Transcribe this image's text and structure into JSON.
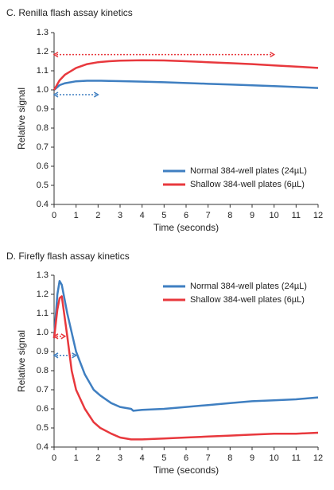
{
  "chart_data": [
    {
      "type": "line",
      "title": "C. Renilla flash assay kinetics",
      "x_label": "Time (seconds)",
      "y_label": "Relative signal",
      "x": [
        0,
        0.25,
        0.5,
        1,
        1.5,
        2,
        2.5,
        3,
        4,
        5,
        6,
        7,
        8,
        9,
        10,
        11,
        12
      ],
      "series": [
        {
          "name": "Normal 384-well plates (24µL)",
          "color": "#3f7fc1",
          "values": [
            1.0,
            1.025,
            1.035,
            1.045,
            1.048,
            1.048,
            1.047,
            1.046,
            1.043,
            1.04,
            1.036,
            1.032,
            1.028,
            1.024,
            1.02,
            1.015,
            1.01
          ]
        },
        {
          "name": "Shallow 384-well plates (6µL)",
          "color": "#e8383d",
          "values": [
            1.0,
            1.05,
            1.08,
            1.115,
            1.135,
            1.145,
            1.15,
            1.153,
            1.155,
            1.154,
            1.15,
            1.145,
            1.14,
            1.135,
            1.128,
            1.122,
            1.115
          ]
        }
      ],
      "arrows": [
        {
          "x": [
            0,
            10
          ],
          "y": 1.185,
          "color": "#e8383d"
        },
        {
          "x": [
            0,
            2
          ],
          "y": 0.975,
          "color": "#3f7fc1"
        }
      ],
      "xlim": [
        0,
        12
      ],
      "xticks": [
        0,
        1,
        2,
        3,
        4,
        5,
        6,
        7,
        8,
        9,
        10,
        11,
        12
      ],
      "ylim": [
        0.4,
        1.3
      ],
      "yticks": [
        0.4,
        0.5,
        0.6,
        0.7,
        0.8,
        0.9,
        {
          "value": 1,
          "label": "1.0"
        },
        1.1,
        1.2,
        1.3
      ],
      "legend": "lower right"
    },
    {
      "type": "line",
      "title": "D. Firefly flash assay kinetics",
      "x_label": "Time (seconds)",
      "y_label": "Relative signal",
      "x": [
        0,
        0.15,
        0.25,
        0.35,
        0.6,
        0.8,
        1,
        1.4,
        1.8,
        2.1,
        2.6,
        3,
        3.5,
        3.6,
        4,
        5,
        6,
        7,
        8,
        9,
        10,
        11,
        12
      ],
      "series": [
        {
          "name": "Normal 384-well plates (24µL)",
          "color": "#3f7fc1",
          "values": [
            0.97,
            1.2,
            1.27,
            1.25,
            1.1,
            1.0,
            0.9,
            0.78,
            0.7,
            0.67,
            0.63,
            0.61,
            0.6,
            0.59,
            0.595,
            0.6,
            0.61,
            0.62,
            0.63,
            0.64,
            0.645,
            0.65,
            0.66
          ]
        },
        {
          "name": "Shallow 384-well plates (6µL)",
          "color": "#e8383d",
          "values": [
            0.97,
            1.12,
            1.18,
            1.19,
            0.98,
            0.8,
            0.7,
            0.6,
            0.53,
            0.5,
            0.47,
            0.45,
            0.44,
            0.44,
            0.44,
            0.445,
            0.45,
            0.455,
            0.46,
            0.465,
            0.47,
            0.47,
            0.475
          ]
        }
      ],
      "arrows": [
        {
          "x": [
            0,
            0.5
          ],
          "y": 0.98,
          "color": "#e8383d"
        },
        {
          "x": [
            0,
            1
          ],
          "y": 0.88,
          "color": "#3f7fc1"
        }
      ],
      "xlim": [
        0,
        12
      ],
      "xticks": [
        0,
        1,
        2,
        3,
        4,
        5,
        6,
        7,
        8,
        9,
        10,
        11,
        12
      ],
      "ylim": [
        0.4,
        1.3
      ],
      "yticks": [
        0.4,
        0.5,
        0.6,
        0.7,
        0.8,
        0.9,
        {
          "value": 1,
          "label": "1.0"
        },
        1.1,
        1.2,
        1.3
      ],
      "legend": "upper right"
    }
  ]
}
